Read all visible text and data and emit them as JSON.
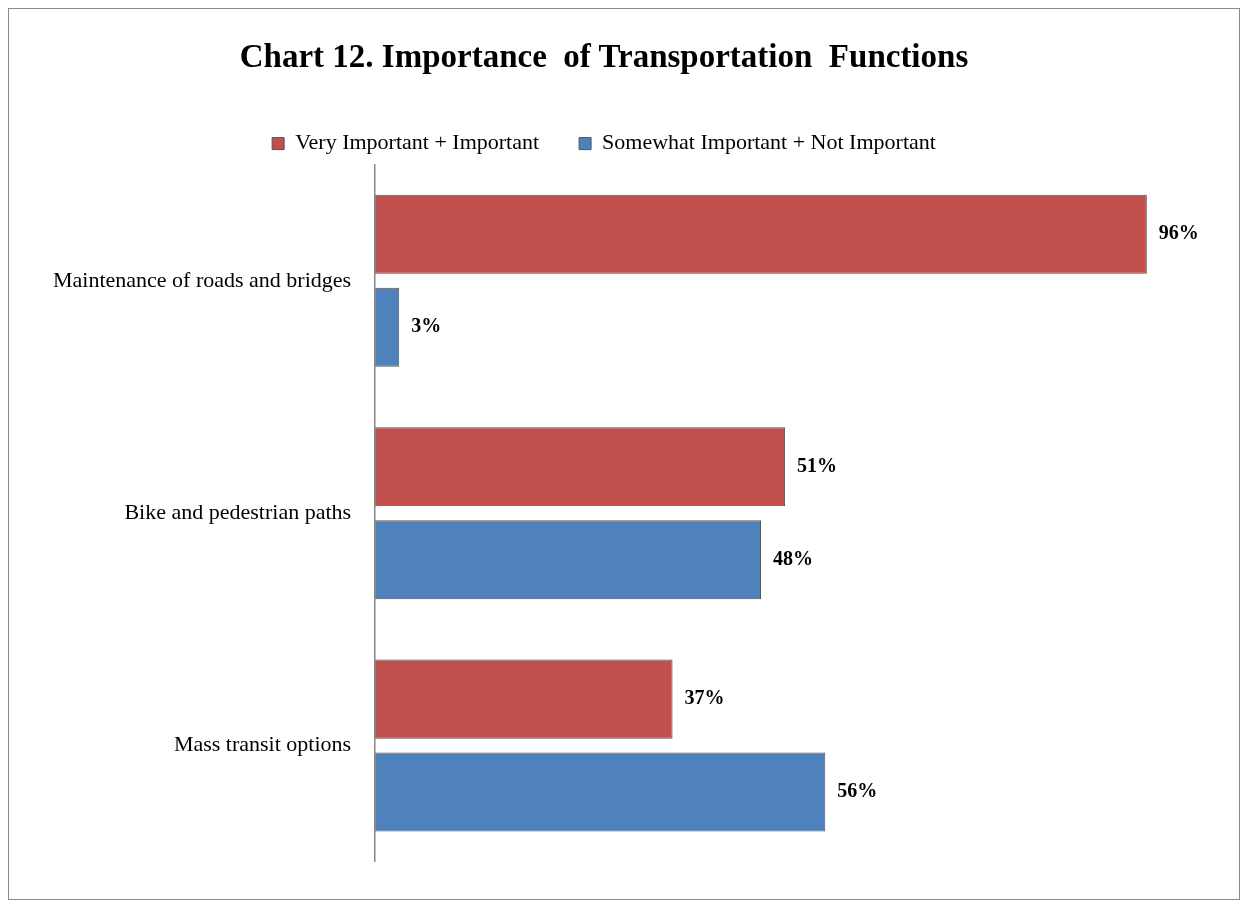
{
  "chart_data": {
    "type": "bar",
    "title": "Chart 12. Importance  of Transportation  Functions",
    "orientation": "horizontal",
    "legend": "top",
    "categories": [
      "Maintenance of roads and bridges",
      "Bike and pedestrian paths",
      "Mass transit options"
    ],
    "series": [
      {
        "name": "Very Important + Important",
        "color": "#c0504d",
        "values": [
          96,
          51,
          37
        ],
        "value_labels": [
          "96%",
          "51%",
          "37%"
        ]
      },
      {
        "name": "Somewhat Important + Not Important",
        "color": "#4f81bd",
        "values": [
          3,
          48,
          56
        ],
        "value_labels": [
          "3%",
          "48%",
          "56%"
        ]
      }
    ],
    "grid": false
  }
}
